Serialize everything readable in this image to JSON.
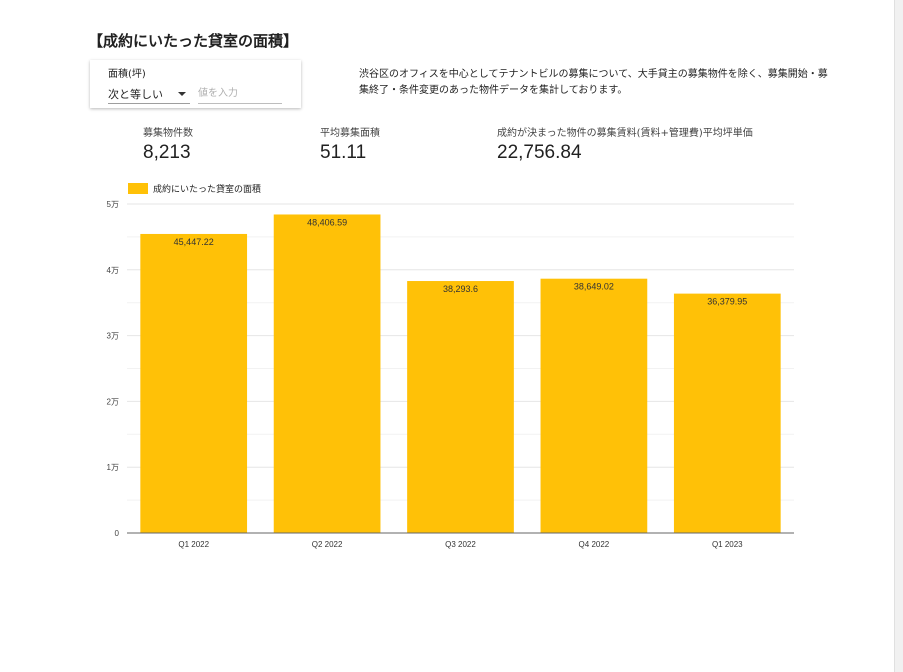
{
  "title": "【成約にいたった貸室の面積】",
  "filter": {
    "label": "面積(坪)",
    "operator": "次と等しい",
    "placeholder": "値を入力",
    "caret_icon": "chevron-down-icon"
  },
  "description": "渋谷区のオフィスを中心としてテナントビルの募集について、大手貸主の募集物件を除く、募集開始・募集終了・条件変更のあった物件データを集計しております。",
  "kpis": [
    {
      "label": "募集物件数",
      "value": "8,213"
    },
    {
      "label": "平均募集面積",
      "value": "51.11"
    },
    {
      "label": "成約が決まった物件の募集賃料(賃料+管理費)平均坪単価",
      "value": "22,756.84"
    }
  ],
  "chart_data": {
    "type": "bar",
    "categories": [
      "Q1 2022",
      "Q2 2022",
      "Q3 2022",
      "Q4 2022",
      "Q1 2023"
    ],
    "series": [
      {
        "name": "成約にいたった貸室の面積",
        "values": [
          45447.22,
          48406.59,
          38293.6,
          38649.02,
          36379.95
        ],
        "labels": [
          "45,447.22",
          "48,406.59",
          "38,293.6",
          "38,649.02",
          "36,379.95"
        ],
        "color": "#FFC107"
      }
    ],
    "ylim": [
      0,
      50000
    ],
    "yticks": [
      0,
      10000,
      20000,
      30000,
      40000,
      50000
    ],
    "ytick_labels": [
      "0",
      "1万",
      "2万",
      "3万",
      "4万",
      "5万"
    ],
    "grid": true,
    "legend": "top-left"
  }
}
